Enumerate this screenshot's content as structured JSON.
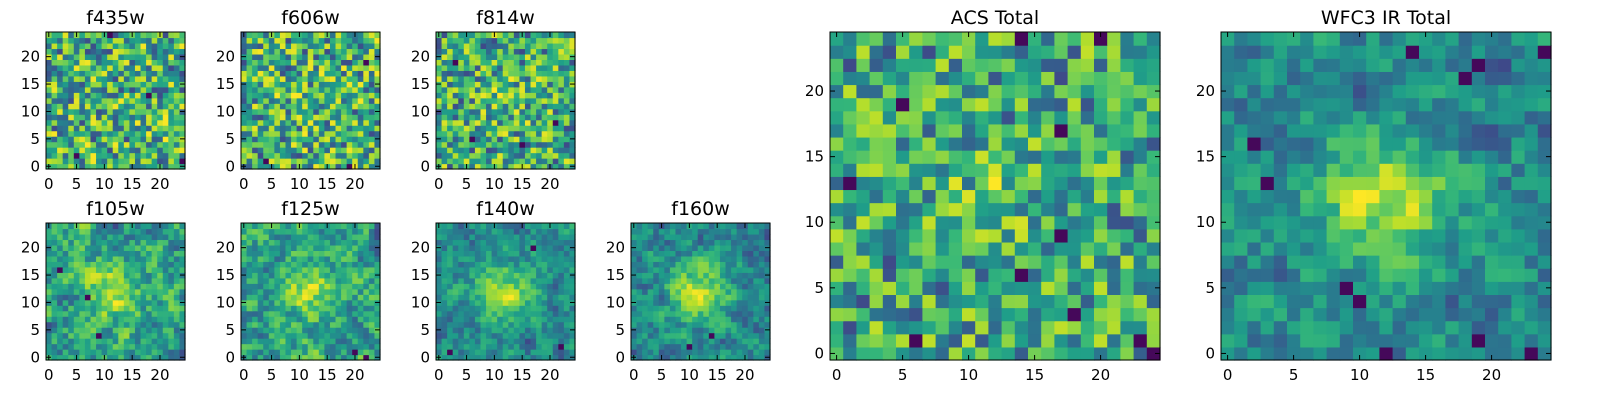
{
  "chart_data": [
    {
      "type": "heatmap",
      "title": "f435w",
      "grid_size": 25,
      "xticks": [
        "0",
        "5",
        "10",
        "15",
        "20"
      ],
      "yticks": [
        "0",
        "5",
        "10",
        "15",
        "20"
      ],
      "xlim": [
        0,
        25
      ],
      "ylim": [
        0,
        25
      ],
      "colormap": "viridis",
      "pattern": "noise",
      "center_strength": 0.0,
      "seed": 11,
      "dark_cells": [
        [
          11,
          24
        ],
        [
          5,
          2
        ],
        [
          18,
          13
        ],
        [
          24,
          1
        ]
      ]
    },
    {
      "type": "heatmap",
      "title": "f606w",
      "grid_size": 25,
      "xticks": [
        "0",
        "5",
        "10",
        "15",
        "20"
      ],
      "yticks": [
        "0",
        "5",
        "10",
        "15",
        "20"
      ],
      "xlim": [
        0,
        25
      ],
      "ylim": [
        0,
        25
      ],
      "colormap": "viridis",
      "pattern": "noise",
      "center_strength": 0.05,
      "seed": 23,
      "dark_cells": [
        [
          19,
          0
        ],
        [
          4,
          1
        ],
        [
          22,
          19
        ]
      ]
    },
    {
      "type": "heatmap",
      "title": "f814w",
      "grid_size": 25,
      "xticks": [
        "0",
        "5",
        "10",
        "15",
        "20"
      ],
      "yticks": [
        "0",
        "5",
        "10",
        "15",
        "20"
      ],
      "xlim": [
        0,
        25
      ],
      "ylim": [
        0,
        25
      ],
      "colormap": "viridis",
      "pattern": "noise",
      "center_strength": 0.1,
      "seed": 37,
      "dark_cells": [
        [
          6,
          5
        ],
        [
          21,
          8
        ],
        [
          3,
          19
        ],
        [
          15,
          4
        ]
      ]
    },
    {
      "type": "heatmap",
      "title": "f105w",
      "grid_size": 25,
      "xticks": [
        "0",
        "5",
        "10",
        "15",
        "20"
      ],
      "yticks": [
        "0",
        "5",
        "10",
        "15",
        "20"
      ],
      "xlim": [
        0,
        25
      ],
      "ylim": [
        0,
        25
      ],
      "colormap": "viridis",
      "pattern": "smooth",
      "center_strength": 0.35,
      "seed": 41,
      "dark_cells": [
        [
          9,
          4
        ],
        [
          7,
          11
        ],
        [
          2,
          16
        ]
      ]
    },
    {
      "type": "heatmap",
      "title": "f125w",
      "grid_size": 25,
      "xticks": [
        "0",
        "5",
        "10",
        "15",
        "20"
      ],
      "yticks": [
        "0",
        "5",
        "10",
        "15",
        "20"
      ],
      "xlim": [
        0,
        25
      ],
      "ylim": [
        0,
        25
      ],
      "colormap": "viridis",
      "pattern": "smooth",
      "center_strength": 0.3,
      "seed": 53,
      "dark_cells": [
        [
          22,
          0
        ],
        [
          20,
          1
        ]
      ]
    },
    {
      "type": "heatmap",
      "title": "f140w",
      "grid_size": 25,
      "xticks": [
        "0",
        "5",
        "10",
        "15",
        "20"
      ],
      "yticks": [
        "0",
        "5",
        "10",
        "15",
        "20"
      ],
      "xlim": [
        0,
        25
      ],
      "ylim": [
        0,
        25
      ],
      "colormap": "viridis",
      "pattern": "smooth",
      "center_strength": 0.5,
      "seed": 67,
      "dark_cells": [
        [
          17,
          20
        ],
        [
          22,
          2
        ],
        [
          2,
          1
        ]
      ]
    },
    {
      "type": "heatmap",
      "title": "f160w",
      "grid_size": 25,
      "xticks": [
        "0",
        "5",
        "10",
        "15",
        "20"
      ],
      "yticks": [
        "0",
        "5",
        "10",
        "15",
        "20"
      ],
      "xlim": [
        0,
        25
      ],
      "ylim": [
        0,
        25
      ],
      "colormap": "viridis",
      "pattern": "smooth",
      "center_strength": 0.5,
      "seed": 71,
      "dark_cells": [
        [
          14,
          4
        ],
        [
          10,
          2
        ]
      ]
    },
    {
      "type": "heatmap",
      "title": "ACS Total",
      "grid_size": 25,
      "xticks": [
        "0",
        "5",
        "10",
        "15",
        "20"
      ],
      "yticks": [
        "0",
        "5",
        "10",
        "15",
        "20"
      ],
      "xlim": [
        0,
        25
      ],
      "ylim": [
        0,
        25
      ],
      "colormap": "viridis",
      "pattern": "noise",
      "center_strength": 0.15,
      "seed": 83,
      "dark_cells": [
        [
          5,
          19
        ],
        [
          1,
          13
        ],
        [
          17,
          17
        ],
        [
          17,
          9
        ],
        [
          14,
          6
        ],
        [
          18,
          3
        ],
        [
          6,
          1
        ],
        [
          23,
          1
        ],
        [
          24,
          0
        ],
        [
          14,
          24
        ],
        [
          20,
          24
        ]
      ]
    },
    {
      "type": "heatmap",
      "title": "WFC3 IR Total",
      "grid_size": 25,
      "xticks": [
        "0",
        "5",
        "10",
        "15",
        "20"
      ],
      "yticks": [
        "0",
        "5",
        "10",
        "15",
        "20"
      ],
      "xlim": [
        0,
        25
      ],
      "ylim": [
        0,
        25
      ],
      "colormap": "viridis",
      "pattern": "smooth",
      "center_strength": 0.55,
      "seed": 97,
      "dark_cells": [
        [
          3,
          13
        ],
        [
          2,
          16
        ],
        [
          9,
          5
        ],
        [
          10,
          4
        ],
        [
          12,
          0
        ],
        [
          19,
          1
        ],
        [
          23,
          0
        ],
        [
          19,
          22
        ],
        [
          24,
          23
        ],
        [
          18,
          21
        ],
        [
          14,
          23
        ]
      ]
    }
  ]
}
